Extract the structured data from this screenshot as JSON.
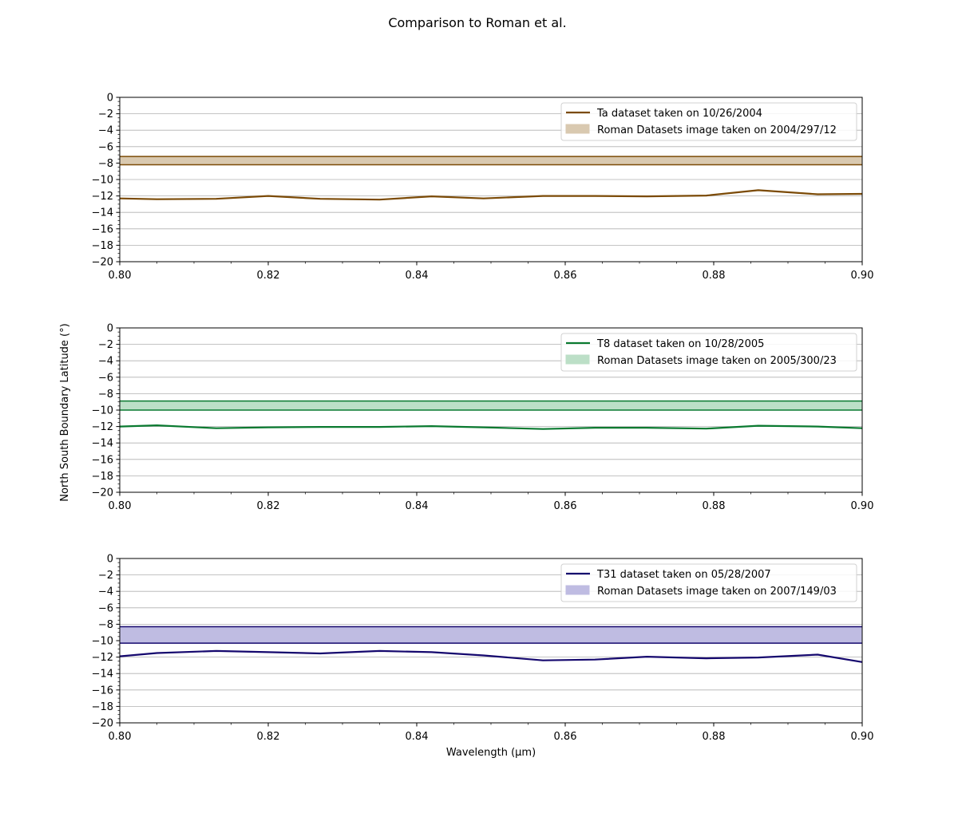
{
  "figure": {
    "title": "Comparison to Roman et al.",
    "xlabel": "Wavelength (μm)",
    "ylabel": "North South Boundary Latitude (°)"
  },
  "chart_data": [
    {
      "type": "line",
      "name": "ta",
      "xlim": [
        0.8,
        0.9
      ],
      "ylim": [
        -20,
        0
      ],
      "grid": "horizontal",
      "legend_position": "top-right",
      "xticks": [
        0.8,
        0.82,
        0.84,
        0.86,
        0.88,
        0.9
      ],
      "xtick_labels": [
        "0.80",
        "0.82",
        "0.84",
        "0.86",
        "0.88",
        "0.90"
      ],
      "yticks": [
        0,
        -2,
        -4,
        -6,
        -8,
        -10,
        -12,
        -14,
        -16,
        -18,
        -20
      ],
      "ytick_labels": [
        "0",
        "−2",
        "−4",
        "−6",
        "−8",
        "−10",
        "−12",
        "−14",
        "−16",
        "−18",
        "−20"
      ],
      "color": "#7b4a06",
      "fill_color": "#d9c9b0",
      "series": {
        "name": "Ta dataset taken on 10/26/2004",
        "x": [
          0.8,
          0.805,
          0.813,
          0.82,
          0.827,
          0.835,
          0.842,
          0.849,
          0.857,
          0.864,
          0.871,
          0.879,
          0.886,
          0.894,
          0.9
        ],
        "y": [
          -12.3,
          -12.4,
          -12.35,
          -12.0,
          -12.35,
          -12.45,
          -12.05,
          -12.3,
          -12.0,
          -12.0,
          -12.05,
          -11.95,
          -11.3,
          -11.8,
          -11.75
        ]
      },
      "band": {
        "name": "Roman Datasets image taken on 2004/297/12",
        "upper": -7.2,
        "lower": -8.2
      }
    },
    {
      "type": "line",
      "name": "t8",
      "xlim": [
        0.8,
        0.9
      ],
      "ylim": [
        -20,
        0
      ],
      "grid": "horizontal",
      "legend_position": "top-right",
      "xticks": [
        0.8,
        0.82,
        0.84,
        0.86,
        0.88,
        0.9
      ],
      "xtick_labels": [
        "0.80",
        "0.82",
        "0.84",
        "0.86",
        "0.88",
        "0.90"
      ],
      "yticks": [
        0,
        -2,
        -4,
        -6,
        -8,
        -10,
        -12,
        -14,
        -16,
        -18,
        -20
      ],
      "ytick_labels": [
        "0",
        "−2",
        "−4",
        "−6",
        "−8",
        "−10",
        "−12",
        "−14",
        "−16",
        "−18",
        "−20"
      ],
      "color": "#0a7a30",
      "fill_color": "#bcdfc7",
      "series": {
        "name": "T8 dataset taken on 10/28/2005",
        "x": [
          0.8,
          0.805,
          0.813,
          0.82,
          0.827,
          0.835,
          0.842,
          0.849,
          0.857,
          0.864,
          0.871,
          0.879,
          0.886,
          0.894,
          0.9
        ],
        "y": [
          -12.0,
          -11.85,
          -12.2,
          -12.1,
          -12.05,
          -12.05,
          -11.95,
          -12.1,
          -12.3,
          -12.15,
          -12.15,
          -12.25,
          -11.9,
          -12.0,
          -12.2
        ]
      },
      "band": {
        "name": "Roman Datasets image taken on 2005/300/23",
        "upper": -8.9,
        "lower": -10.0
      }
    },
    {
      "type": "line",
      "name": "t31",
      "xlim": [
        0.8,
        0.9
      ],
      "ylim": [
        -20,
        0
      ],
      "grid": "horizontal",
      "legend_position": "top-right",
      "xticks": [
        0.8,
        0.82,
        0.84,
        0.86,
        0.88,
        0.9
      ],
      "xtick_labels": [
        "0.80",
        "0.82",
        "0.84",
        "0.86",
        "0.88",
        "0.90"
      ],
      "yticks": [
        0,
        -2,
        -4,
        -6,
        -8,
        -10,
        -12,
        -14,
        -16,
        -18,
        -20
      ],
      "ytick_labels": [
        "0",
        "−2",
        "−4",
        "−6",
        "−8",
        "−10",
        "−12",
        "−14",
        "−16",
        "−18",
        "−20"
      ],
      "color": "#15086e",
      "fill_color": "#bfbce2",
      "series": {
        "name": "T31 dataset taken on 05/28/2007",
        "x": [
          0.8,
          0.805,
          0.813,
          0.82,
          0.827,
          0.835,
          0.842,
          0.849,
          0.857,
          0.864,
          0.871,
          0.879,
          0.886,
          0.894,
          0.9
        ],
        "y": [
          -11.9,
          -11.5,
          -11.25,
          -11.4,
          -11.55,
          -11.25,
          -11.4,
          -11.8,
          -12.4,
          -12.3,
          -11.95,
          -12.15,
          -12.05,
          -11.7,
          -12.6
        ]
      },
      "band": {
        "name": "Roman Datasets image taken on 2007/149/03",
        "upper": -8.3,
        "lower": -10.3
      }
    }
  ]
}
